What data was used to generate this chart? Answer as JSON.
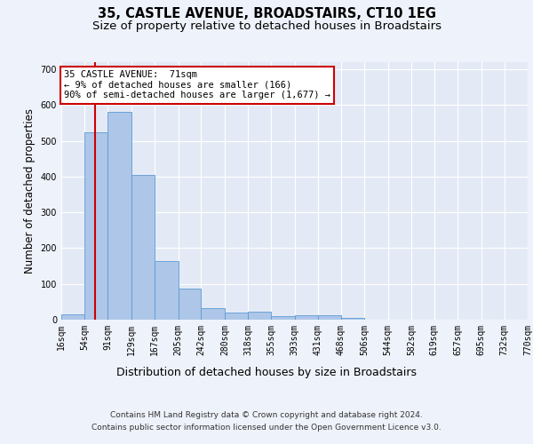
{
  "title": "35, CASTLE AVENUE, BROADSTAIRS, CT10 1EG",
  "subtitle": "Size of property relative to detached houses in Broadstairs",
  "xlabel": "Distribution of detached houses by size in Broadstairs",
  "ylabel": "Number of detached properties",
  "bin_edges": [
    16,
    54,
    91,
    129,
    167,
    205,
    242,
    280,
    318,
    355,
    393,
    431,
    468,
    506,
    544,
    582,
    619,
    657,
    695,
    732,
    770
  ],
  "bar_heights": [
    15,
    525,
    580,
    405,
    165,
    88,
    33,
    20,
    22,
    9,
    12,
    12,
    5,
    0,
    0,
    0,
    0,
    0,
    0,
    0
  ],
  "bar_color": "#aec6e8",
  "bar_edge_color": "#5b9bd5",
  "red_line_x": 71,
  "annotation_text": "35 CASTLE AVENUE:  71sqm\n← 9% of detached houses are smaller (166)\n90% of semi-detached houses are larger (1,677) →",
  "annotation_box_color": "#ffffff",
  "annotation_box_edge": "#cc0000",
  "ylim": [
    0,
    720
  ],
  "yticks": [
    0,
    100,
    200,
    300,
    400,
    500,
    600,
    700
  ],
  "footer_line1": "Contains HM Land Registry data © Crown copyright and database right 2024.",
  "footer_line2": "Contains public sector information licensed under the Open Government Licence v3.0.",
  "bg_color": "#eef2fa",
  "plot_bg_color": "#e4eaf5",
  "grid_color": "#ffffff",
  "title_fontsize": 10.5,
  "subtitle_fontsize": 9.5,
  "tick_label_fontsize": 7,
  "ylabel_fontsize": 8.5,
  "xlabel_fontsize": 9,
  "footer_fontsize": 6.5,
  "annotation_fontsize": 7.5
}
